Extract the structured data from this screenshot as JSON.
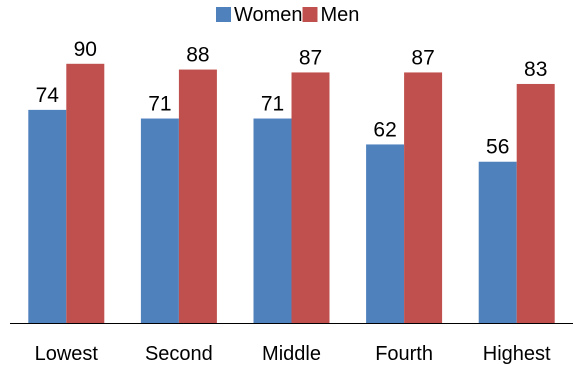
{
  "chart_data": {
    "type": "bar",
    "categories": [
      "Lowest",
      "Second",
      "Middle",
      "Fourth",
      "Highest"
    ],
    "series": [
      {
        "name": "Women",
        "values": [
          74,
          71,
          71,
          62,
          56
        ],
        "color": "#4F81BD"
      },
      {
        "name": "Men",
        "values": [
          90,
          88,
          87,
          87,
          83
        ],
        "color": "#C0504D"
      }
    ],
    "title": "",
    "xlabel": "",
    "ylabel": "",
    "ylim": [
      0,
      100
    ],
    "grid": false,
    "legend_position": "top-center",
    "data_labels": true,
    "y_axis_visible": false
  }
}
